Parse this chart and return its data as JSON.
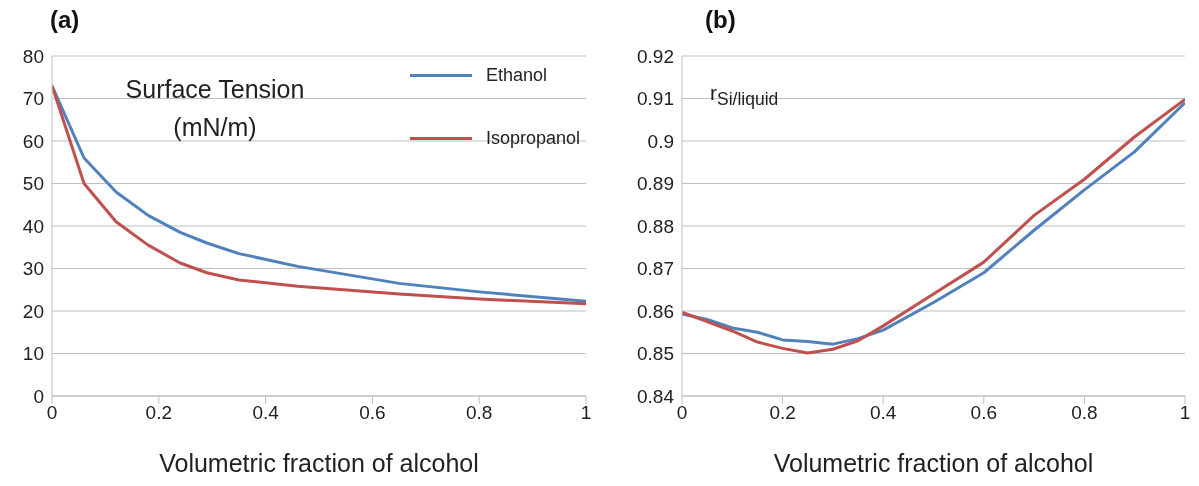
{
  "chart_data": [
    {
      "type": "line",
      "title": "(a)",
      "xlabel": "Volumetric fraction of alcohol",
      "annotations": [
        "Surface Tension (mN/m)"
      ],
      "xlim": [
        0,
        1
      ],
      "xticks": [
        0,
        0.2,
        0.4,
        0.6,
        0.8,
        1
      ],
      "ylim": [
        0,
        80
      ],
      "yticks": [
        0,
        10,
        20,
        30,
        40,
        50,
        60,
        70,
        80
      ],
      "grid": "y",
      "legend": "top right",
      "marker": "none",
      "line_style": "solid",
      "series": [
        {
          "name": "Ethanol",
          "color": "#4f81bd",
          "x": [
            0,
            0.06,
            0.12,
            0.18,
            0.24,
            0.29,
            0.35,
            0.46,
            0.65,
            0.8,
            1
          ],
          "values": [
            73,
            56,
            48,
            42.5,
            38.5,
            36,
            33.5,
            30.5,
            26.5,
            24.5,
            22.3
          ]
        },
        {
          "name": "Isopropanol",
          "color": "#c0504d",
          "x": [
            0,
            0.06,
            0.12,
            0.18,
            0.24,
            0.29,
            0.35,
            0.46,
            0.65,
            0.8,
            1
          ],
          "values": [
            73,
            50,
            41,
            35.5,
            31.3,
            29,
            27.3,
            25.8,
            24,
            22.8,
            21.7
          ]
        }
      ]
    },
    {
      "type": "line",
      "title": "(b)",
      "xlabel": "Volumetric fraction of alcohol",
      "annotations": [
        "r$_{Si/liquid}$"
      ],
      "xlim": [
        0,
        1
      ],
      "xticks": [
        0,
        0.2,
        0.4,
        0.6,
        0.8,
        1
      ],
      "ylim": [
        0.84,
        0.92
      ],
      "yticks": [
        0.84,
        0.85,
        0.86,
        0.87,
        0.88,
        0.89,
        0.9,
        0.91,
        0.92
      ],
      "grid": "y",
      "marker": "none",
      "line_style": "solid",
      "series": [
        {
          "color": "#4f81bd",
          "x": [
            0,
            0.05,
            0.1,
            0.15,
            0.2,
            0.25,
            0.3,
            0.35,
            0.4,
            0.5,
            0.6,
            0.7,
            0.8,
            0.9,
            1
          ],
          "values": [
            0.8593,
            0.858,
            0.856,
            0.855,
            0.8532,
            0.8528,
            0.8522,
            0.8535,
            0.8555,
            0.862,
            0.869,
            0.879,
            0.8885,
            0.8975,
            0.909
          ]
        },
        {
          "color": "#c0504d",
          "x": [
            0,
            0.05,
            0.1,
            0.15,
            0.2,
            0.25,
            0.3,
            0.35,
            0.4,
            0.5,
            0.6,
            0.7,
            0.8,
            0.9,
            1
          ],
          "values": [
            0.8597,
            0.8575,
            0.8553,
            0.8527,
            0.8512,
            0.8501,
            0.851,
            0.853,
            0.8565,
            0.864,
            0.8715,
            0.8825,
            0.891,
            0.901,
            0.9098
          ]
        }
      ]
    }
  ]
}
